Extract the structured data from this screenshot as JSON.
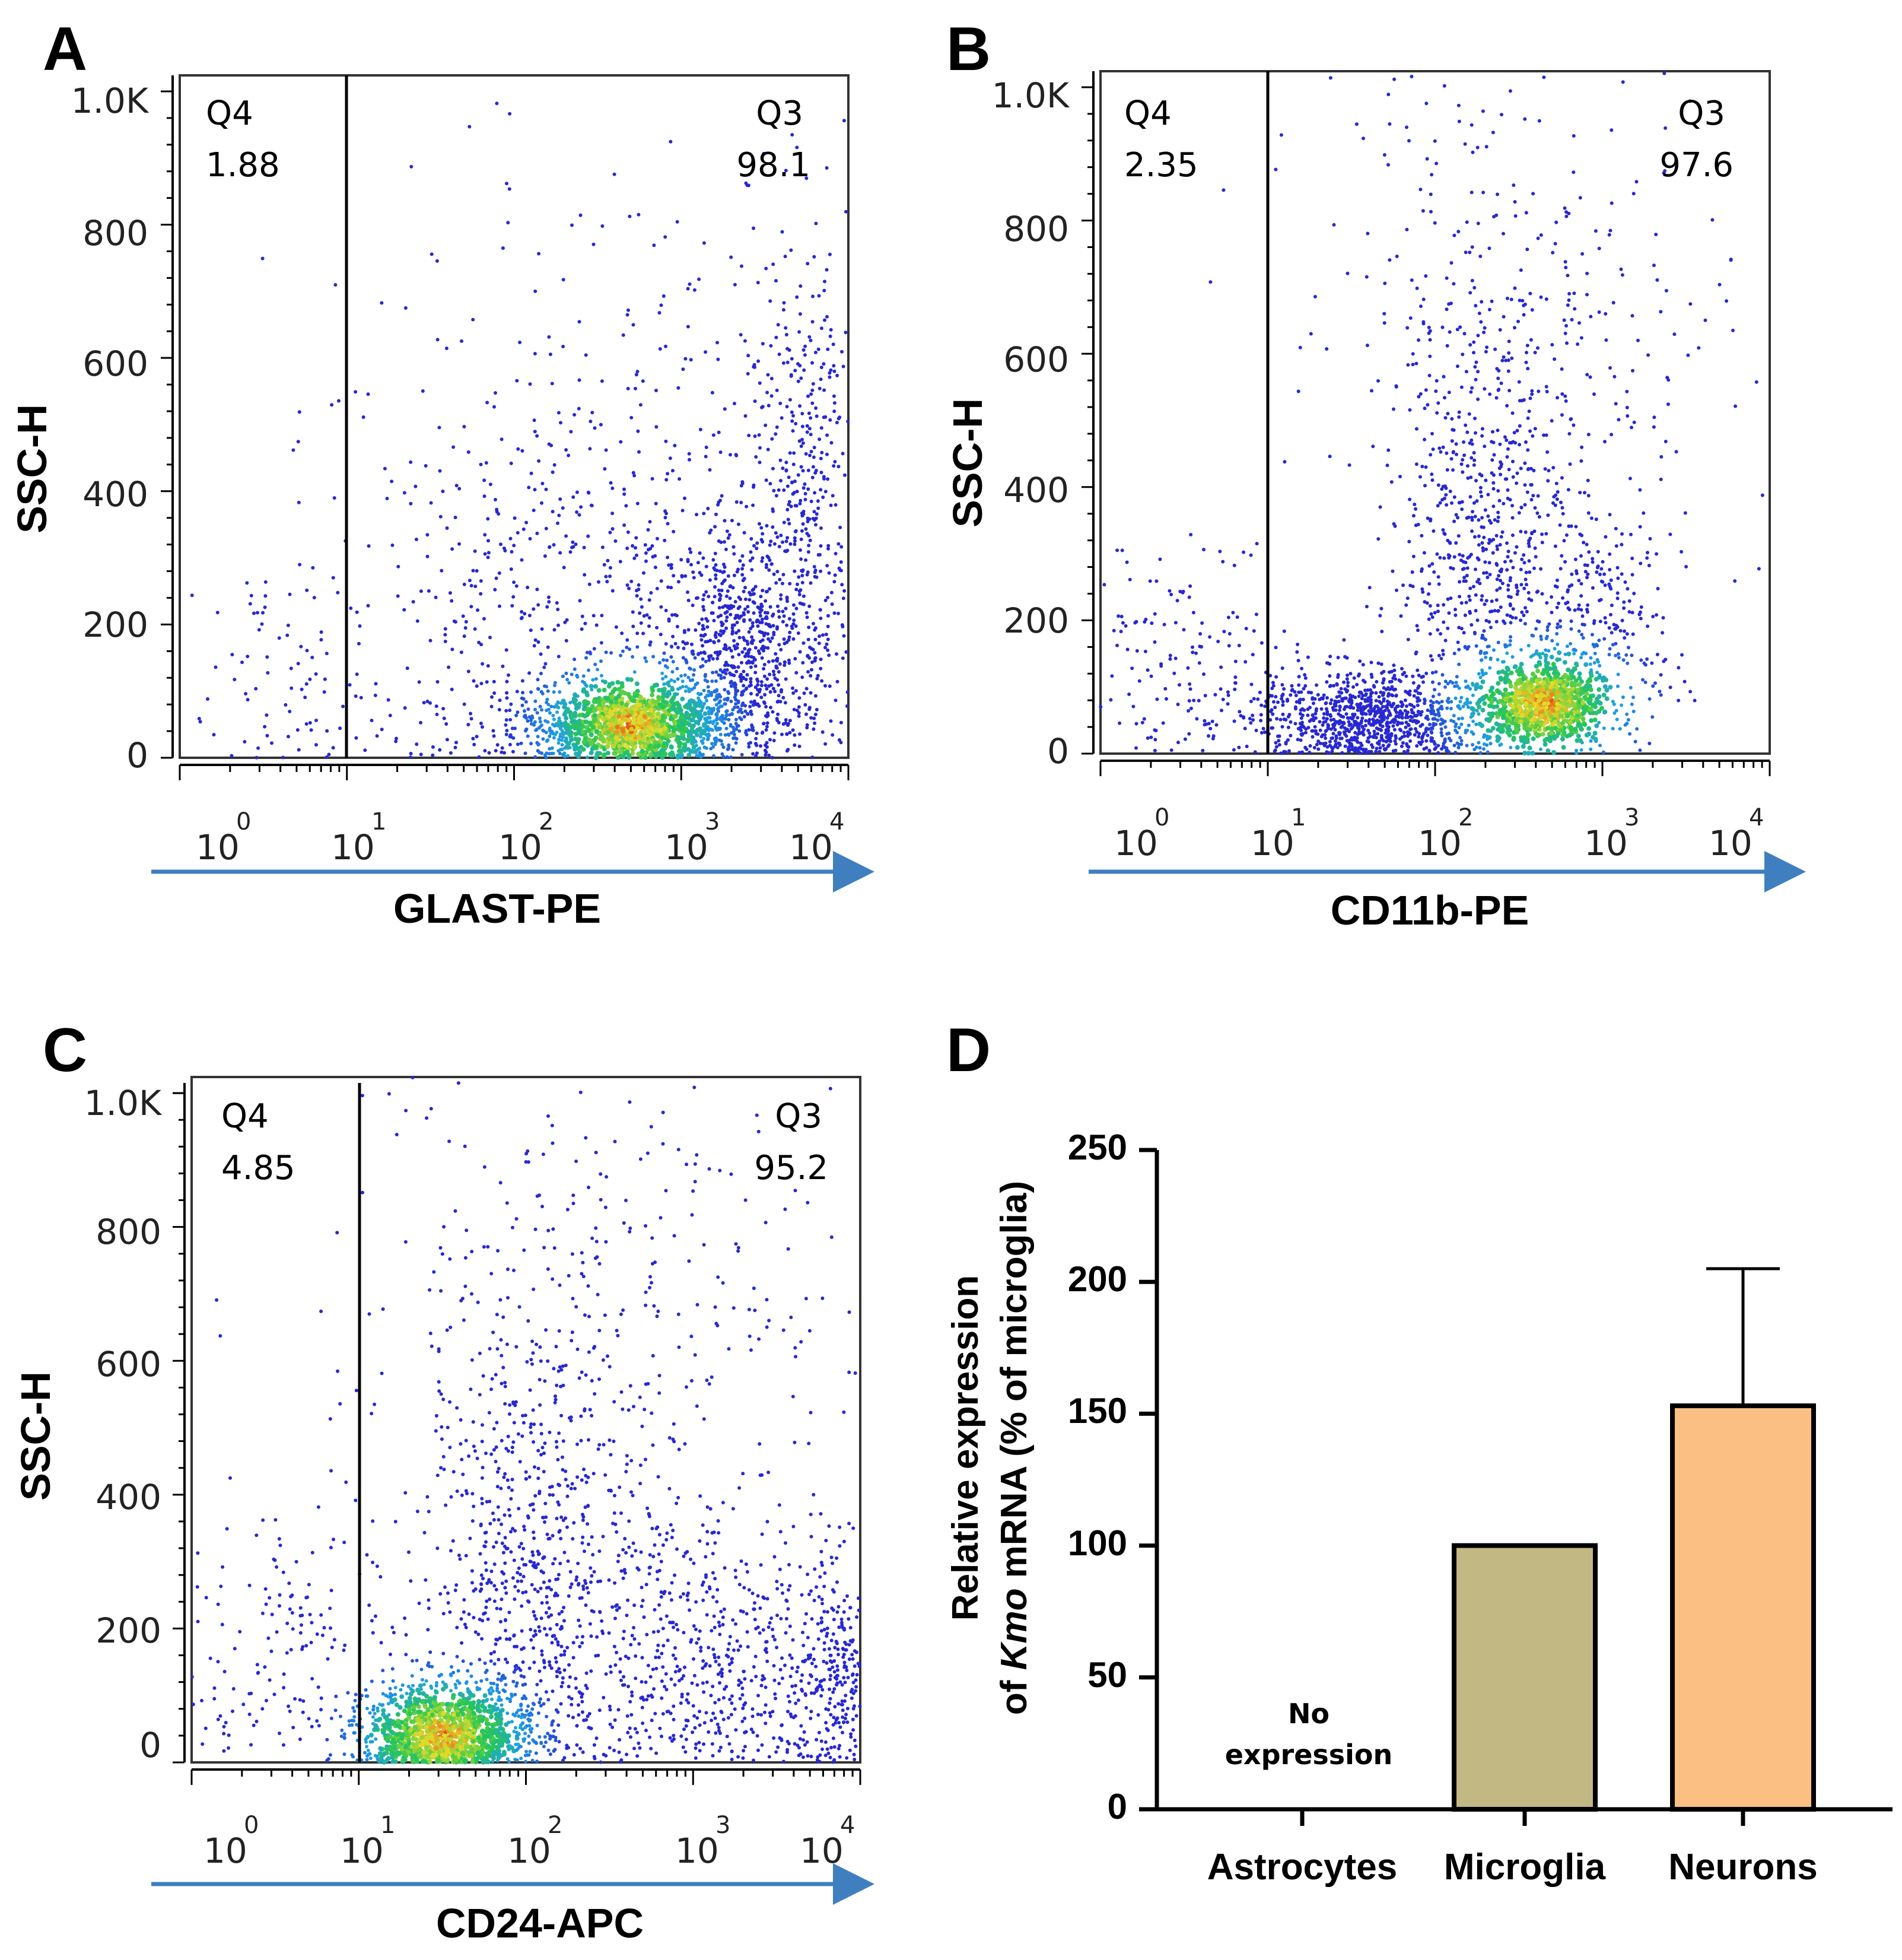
{
  "chart_data": [
    {
      "panel": "A",
      "type": "scatter",
      "title": "",
      "xlabel": "GLAST-PE",
      "ylabel": "SSC-H",
      "xscale": "log",
      "xlim": [
        1,
        10000
      ],
      "ylim": [
        0,
        1024
      ],
      "x_ticks": [
        {
          "base": "10",
          "exp": "0"
        },
        {
          "base": "10",
          "exp": "1"
        },
        {
          "base": "10",
          "exp": "2"
        },
        {
          "base": "10",
          "exp": "3"
        },
        {
          "base": "10",
          "exp": "4"
        }
      ],
      "y_ticks": [
        "0",
        "200",
        "400",
        "600",
        "800",
        "1.0K"
      ],
      "gate_x": 10,
      "quadrants": [
        {
          "name": "Q4",
          "value": "1.88",
          "position": "top-left"
        },
        {
          "name": "Q3",
          "value": "98.1",
          "position": "top-right"
        }
      ],
      "clusters": [
        {
          "log_x": 2.7,
          "y": 50,
          "spread_log_x": 0.35,
          "spread_y": 30,
          "weight": 0.42
        },
        {
          "log_x": 3.35,
          "y": 160,
          "spread_log_x": 0.25,
          "spread_y": 90,
          "weight": 0.22
        },
        {
          "log_x": 3.75,
          "y": 420,
          "spread_log_x": 0.18,
          "spread_y": 200,
          "weight": 0.12
        },
        {
          "log_x": 2.4,
          "y": 250,
          "spread_log_x": 0.7,
          "spread_y": 200,
          "weight": 0.18
        },
        {
          "log_x": 0.6,
          "y": 120,
          "spread_log_x": 0.4,
          "spread_y": 90,
          "weight": 0.03
        },
        {
          "log_x": 2.8,
          "y": 650,
          "spread_log_x": 0.8,
          "spread_y": 200,
          "weight": 0.03
        }
      ],
      "density_center": {
        "log_x": 2.7,
        "y": 50
      }
    },
    {
      "panel": "B",
      "type": "scatter",
      "title": "",
      "xlabel": "CD11b-PE",
      "ylabel": "SSC-H",
      "xscale": "log",
      "xlim": [
        1,
        10000
      ],
      "ylim": [
        0,
        1024
      ],
      "x_ticks": [
        {
          "base": "10",
          "exp": "0"
        },
        {
          "base": "10",
          "exp": "1"
        },
        {
          "base": "10",
          "exp": "2"
        },
        {
          "base": "10",
          "exp": "3"
        },
        {
          "base": "10",
          "exp": "4"
        }
      ],
      "y_ticks": [
        "0",
        "200",
        "400",
        "600",
        "800",
        "1.0K"
      ],
      "gate_x": 10,
      "quadrants": [
        {
          "name": "Q4",
          "value": "2.35",
          "position": "top-left"
        },
        {
          "name": "Q3",
          "value": "97.6",
          "position": "top-right"
        }
      ],
      "clusters": [
        {
          "log_x": 2.65,
          "y": 75,
          "spread_log_x": 0.15,
          "spread_y": 28,
          "weight": 0.25
        },
        {
          "log_x": 1.6,
          "y": 55,
          "spread_log_x": 0.35,
          "spread_y": 35,
          "weight": 0.3
        },
        {
          "log_x": 2.3,
          "y": 300,
          "spread_log_x": 0.25,
          "spread_y": 180,
          "weight": 0.2
        },
        {
          "log_x": 2.95,
          "y": 170,
          "spread_log_x": 0.22,
          "spread_y": 110,
          "weight": 0.1
        },
        {
          "log_x": 0.5,
          "y": 130,
          "spread_log_x": 0.35,
          "spread_y": 100,
          "weight": 0.05
        },
        {
          "log_x": 2.5,
          "y": 650,
          "spread_log_x": 0.6,
          "spread_y": 220,
          "weight": 0.1
        }
      ],
      "density_center": {
        "log_x": 2.65,
        "y": 75
      }
    },
    {
      "panel": "C",
      "type": "scatter",
      "title": "",
      "xlabel": "CD24-APC",
      "ylabel": "SSC-H",
      "xscale": "log",
      "xlim": [
        1,
        10000
      ],
      "ylim": [
        0,
        1024
      ],
      "x_ticks": [
        {
          "base": "10",
          "exp": "0"
        },
        {
          "base": "10",
          "exp": "1"
        },
        {
          "base": "10",
          "exp": "2"
        },
        {
          "base": "10",
          "exp": "3"
        },
        {
          "base": "10",
          "exp": "4"
        }
      ],
      "y_ticks": [
        "0",
        "200",
        "400",
        "600",
        "800",
        "1.0K"
      ],
      "gate_x": 10,
      "quadrants": [
        {
          "name": "Q4",
          "value": "4.85",
          "position": "top-left"
        },
        {
          "name": "Q3",
          "value": "95.2",
          "position": "top-right"
        }
      ],
      "clusters": [
        {
          "log_x": 1.5,
          "y": 40,
          "spread_log_x": 0.25,
          "spread_y": 40,
          "weight": 0.35
        },
        {
          "log_x": 2.0,
          "y": 250,
          "spread_log_x": 0.3,
          "spread_y": 200,
          "weight": 0.22
        },
        {
          "log_x": 3.1,
          "y": 150,
          "spread_log_x": 0.45,
          "spread_y": 120,
          "weight": 0.18
        },
        {
          "log_x": 3.85,
          "y": 120,
          "spread_log_x": 0.12,
          "spread_y": 90,
          "weight": 0.08
        },
        {
          "log_x": 0.6,
          "y": 160,
          "spread_log_x": 0.4,
          "spread_y": 130,
          "weight": 0.06
        },
        {
          "log_x": 2.5,
          "y": 650,
          "spread_log_x": 0.8,
          "spread_y": 220,
          "weight": 0.11
        }
      ],
      "density_center": {
        "log_x": 1.5,
        "y": 40
      }
    },
    {
      "panel": "D",
      "type": "bar",
      "title": "",
      "xlabel": "",
      "ylabel_line1": "Relative expression",
      "ylabel_line2_prefix": "of ",
      "ylabel_line2_italic": "Kmo",
      "ylabel_line2_suffix": " mRNA (% of microglia)",
      "categories": [
        "Astrocytes",
        "Microglia",
        "Neurons"
      ],
      "values": [
        0,
        100,
        153
      ],
      "error_upper": [
        null,
        null,
        205
      ],
      "ylim": [
        0,
        250
      ],
      "y_ticks": [
        "0",
        "50",
        "100",
        "150",
        "200",
        "250"
      ],
      "annotations": [
        {
          "category": "Astrocytes",
          "line1": "No",
          "line2": "expression"
        }
      ],
      "colors": [
        "#ffffff",
        "#c2b883",
        "#fbbf84"
      ]
    }
  ],
  "colors": {
    "arrow": "#3f7fc0",
    "axis": "#000000",
    "bar_outline": "#000000",
    "plot_frame": "#333333"
  }
}
